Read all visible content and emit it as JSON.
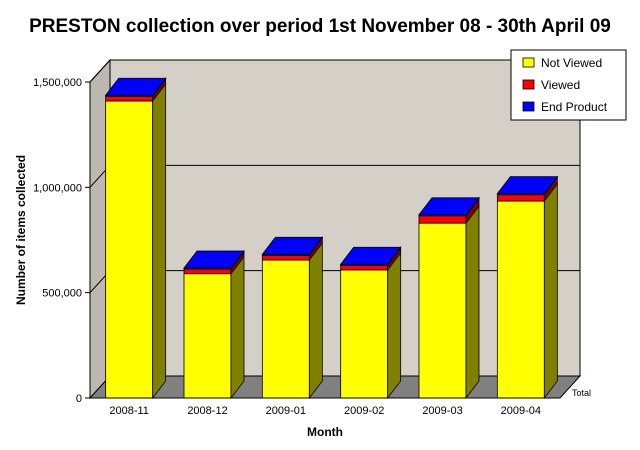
{
  "chart_data": {
    "type": "bar",
    "stacked": true,
    "three_d": true,
    "title": "PRESTON collection over period 1st November 08 - 30th April 09",
    "xlabel": "Month",
    "ylabel": "Number of items collected",
    "depth_label": "Total",
    "categories": [
      "2008-11",
      "2008-12",
      "2009-01",
      "2009-02",
      "2009-03",
      "2009-04"
    ],
    "series": [
      {
        "name": "Not Viewed",
        "color": "#ffff00",
        "values": [
          1410000,
          590000,
          655000,
          608000,
          830000,
          935000
        ]
      },
      {
        "name": "Viewed",
        "color": "#ff0000",
        "values": [
          22000,
          22000,
          22000,
          22000,
          35000,
          30000
        ]
      },
      {
        "name": "End Product",
        "color": "#0000ff",
        "values": [
          5000,
          5000,
          5000,
          5000,
          5000,
          5000
        ]
      }
    ],
    "ylim": [
      0,
      1500000
    ],
    "yticks": [
      0,
      500000,
      1000000,
      1500000
    ],
    "ytick_labels": [
      "0",
      "500,000",
      "1,000,000",
      "1,500,000"
    ],
    "grid": true,
    "legend_position": "top-right"
  }
}
